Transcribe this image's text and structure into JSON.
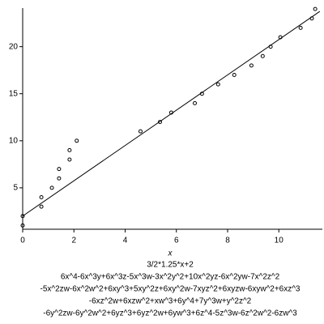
{
  "chart_data": {
    "type": "scatter",
    "x_label": "x",
    "xlim": [
      0,
      11.7
    ],
    "ylim": [
      0.6,
      24.1
    ],
    "xticks": [
      0,
      2,
      4,
      6,
      8,
      10
    ],
    "yticks": [
      5,
      10,
      15,
      20
    ],
    "series": [
      {
        "type": "scatter",
        "color": "#000000",
        "x": [
          0,
          0,
          0.73,
          0.73,
          1.14,
          1.42,
          1.42,
          1.83,
          1.83,
          2.11,
          4.6,
          5.36,
          5.8,
          6.72,
          7.0,
          7.63,
          8.26,
          8.93,
          9.37,
          9.68,
          10.06,
          10.85,
          11.29,
          11.42
        ],
        "values": [
          1,
          2,
          3,
          4,
          5,
          6,
          7,
          8,
          9,
          10,
          11,
          12,
          13,
          14,
          15,
          16,
          17,
          18,
          19,
          20,
          21,
          22,
          23,
          24
        ]
      },
      {
        "type": "line",
        "color": "#000000",
        "x": [
          0,
          11.6
        ],
        "values": [
          2,
          23.75
        ]
      }
    ],
    "labels": [
      "3/2*1.25*x+2",
      "6x^4-6x^3y+6x^3z-5x^3w-3x^2y^2+10x^2yz-6x^2yw-7x^2z^2",
      "-5x^2zw-6x^2w^2+6xy^3+5xy^2z+6xy^2w-7xyz^2+6xyzw-6xyw^2+6xz^3",
      "-6xz^2w+6xzw^2+xw^3+6y^4+7y^3w+y^2z^2",
      "-6y^2zw-6y^2w^2+6yz^3+6yz^2w+6yw^3+6z^4-5z^3w-6z^2w^2-6zw^3"
    ]
  }
}
